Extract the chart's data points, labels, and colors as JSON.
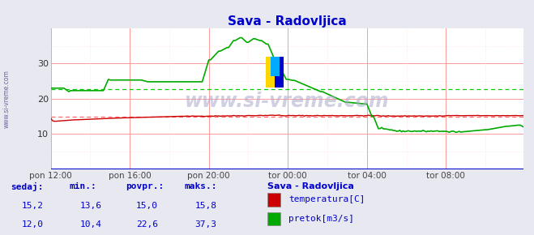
{
  "title": "Sava - Radovljica",
  "title_color": "#0000cc",
  "bg_color": "#e8e8f0",
  "plot_bg_color": "#ffffff",
  "grid_color_major": "#ff9999",
  "grid_color_minor": "#ffdddd",
  "yticks": [
    10,
    20,
    30
  ],
  "ylim": [
    0,
    40
  ],
  "xlim": [
    0,
    287
  ],
  "xtick_labels": [
    "pon 12:00",
    "pon 16:00",
    "pon 20:00",
    "tor 00:00",
    "tor 04:00",
    "tor 08:00"
  ],
  "xtick_positions": [
    0,
    48,
    96,
    144,
    192,
    240
  ],
  "watermark": "www.si-vreme.com",
  "watermark_color": "#aaaacc",
  "sidebar_text": "www.si-vreme.com",
  "temp_color": "#cc0000",
  "flow_color": "#00aa00",
  "avg_temp_color": "#ff6666",
  "avg_flow_color": "#00cc00",
  "bottom_bg": "#cce0ff",
  "bottom_text_color": "#0000cc",
  "legend_title": "Sava - Radovljica",
  "stat_labels": [
    "sedaj:",
    "min.:",
    "povpr.:",
    "maks.:"
  ],
  "temp_stats": [
    "15,2",
    "13,6",
    "15,0",
    "15,8"
  ],
  "flow_stats": [
    "12,0",
    "10,4",
    "22,6",
    "37,3"
  ],
  "temp_label": "temperatura[C]",
  "flow_label": "pretok[m3/s]",
  "temp_avg": 15.0,
  "flow_avg": 22.6,
  "axis_bottom_color": "#0000cc",
  "arrow_color": "#cc0000"
}
